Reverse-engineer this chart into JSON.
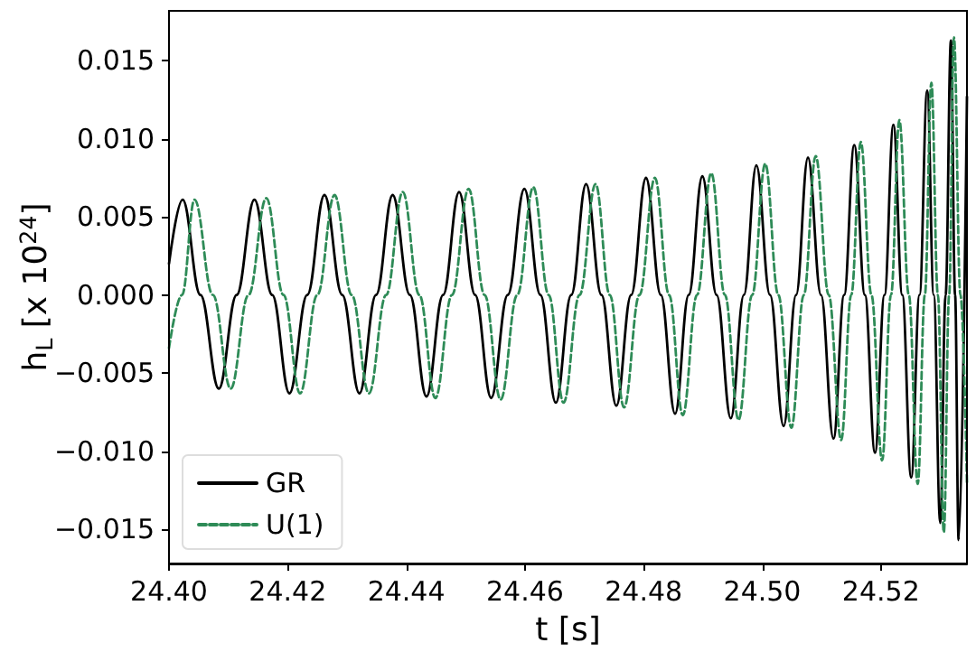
{
  "chart_data": {
    "type": "line",
    "xlabel": "t [s]",
    "ylabel": "h$_{L}$ [x 10$^{24}$]",
    "xlim": [
      24.4,
      24.5345
    ],
    "ylim": [
      -0.0172,
      0.0182
    ],
    "xticks": [
      {
        "value": 24.4,
        "label": "24.40"
      },
      {
        "value": 24.42,
        "label": "24.42"
      },
      {
        "value": 24.44,
        "label": "24.44"
      },
      {
        "value": 24.46,
        "label": "24.46"
      },
      {
        "value": 24.48,
        "label": "24.48"
      },
      {
        "value": 24.5,
        "label": "24.50"
      },
      {
        "value": 24.52,
        "label": "24.52"
      }
    ],
    "yticks": [
      {
        "value": -0.015,
        "label": "−0.015"
      },
      {
        "value": -0.01,
        "label": "−0.010"
      },
      {
        "value": -0.005,
        "label": "−0.005"
      },
      {
        "value": 0,
        "label": "0.000"
      },
      {
        "value": 0.005,
        "label": "0.005"
      },
      {
        "value": 0.01,
        "label": "0.010"
      },
      {
        "value": 0.015,
        "label": "0.015"
      }
    ],
    "grid": false,
    "legend": "bottom left",
    "marker": "none",
    "series": [
      {
        "name": "GR",
        "color": "#000000",
        "line_style": "solid",
        "x": [
          24.4,
          24.4023,
          24.4053,
          24.4084,
          24.4114,
          24.4144,
          24.4174,
          24.4203,
          24.4233,
          24.4262,
          24.4292,
          24.4321,
          24.4349,
          24.4377,
          24.4406,
          24.4434,
          24.4462,
          24.4489,
          24.4516,
          24.4543,
          24.4571,
          24.4599,
          24.4626,
          24.4652,
          24.4678,
          24.4703,
          24.4729,
          24.4754,
          24.4779,
          24.4804,
          24.4829,
          24.4853,
          24.4876,
          24.4899,
          24.4923,
          24.4947,
          24.4969,
          24.499,
          24.5013,
          24.5036,
          24.5057,
          24.5077,
          24.5099,
          24.512,
          24.5138,
          24.5155,
          24.5173,
          24.519,
          24.5206,
          24.5221,
          24.5236,
          24.5251,
          24.5265,
          24.5278,
          24.5289,
          24.53,
          24.5309,
          24.5318,
          24.5325,
          24.5331,
          24.5345
        ],
        "values": [
          0.002,
          0.0061,
          0,
          -0.006,
          0,
          0.0061,
          0,
          -0.0063,
          0,
          0.0064,
          0,
          -0.0063,
          0,
          0.0064,
          0,
          -0.0065,
          0,
          0.0066,
          0,
          -0.0066,
          0,
          0.0068,
          0,
          -0.0069,
          0,
          0.0071,
          0,
          -0.0071,
          0,
          0.0075,
          0,
          -0.0076,
          0,
          0.0076,
          0,
          -0.0079,
          0,
          0.0083,
          0,
          -0.0084,
          0,
          0.0088,
          0,
          -0.0092,
          0,
          0.0096,
          0,
          -0.0101,
          0,
          0.0109,
          0,
          -0.0117,
          0,
          0.0131,
          0,
          -0.0146,
          0,
          0.0163,
          0,
          -0.0157,
          0.0127
        ]
      },
      {
        "name": "U(1)",
        "color": "#2e8b57",
        "line_style": "dashed",
        "x": [
          24.4,
          24.4022,
          24.4043,
          24.4074,
          24.4104,
          24.4134,
          24.4164,
          24.4193,
          24.4221,
          24.425,
          24.4279,
          24.4308,
          24.4337,
          24.4366,
          24.4394,
          24.4422,
          24.4449,
          24.4477,
          24.4505,
          24.4532,
          24.4559,
          24.4587,
          24.4614,
          24.464,
          24.4665,
          24.4692,
          24.4719,
          24.4743,
          24.4767,
          24.4793,
          24.4819,
          24.4843,
          24.4866,
          24.489,
          24.4914,
          24.4937,
          24.496,
          24.4983,
          24.5005,
          24.5027,
          24.5049,
          24.507,
          24.509,
          24.5112,
          24.5133,
          24.515,
          24.5166,
          24.5184,
          24.5202,
          24.5217,
          24.5231,
          24.5247,
          24.5262,
          24.5274,
          24.5285,
          24.5296,
          24.5306,
          24.5315,
          24.5323,
          24.5334,
          24.5345
        ],
        "values": [
          -0.0034,
          0,
          0.0061,
          0,
          -0.006,
          0,
          0.0062,
          0,
          -0.0063,
          0,
          0.0064,
          0,
          -0.0063,
          0,
          0.0066,
          0,
          -0.0066,
          0,
          0.0068,
          0,
          -0.0067,
          0,
          0.0069,
          0,
          -0.0069,
          0,
          0.0071,
          0,
          -0.0072,
          0,
          0.0075,
          0,
          -0.0077,
          0,
          0.0078,
          0,
          -0.008,
          0,
          0.0084,
          0,
          -0.0085,
          0,
          0.0089,
          0,
          -0.0093,
          0,
          0.0098,
          0,
          -0.0106,
          0,
          0.0112,
          0,
          -0.0121,
          0,
          0.0136,
          0,
          -0.0152,
          0,
          0.0165,
          0,
          -0.012
        ]
      }
    ]
  }
}
